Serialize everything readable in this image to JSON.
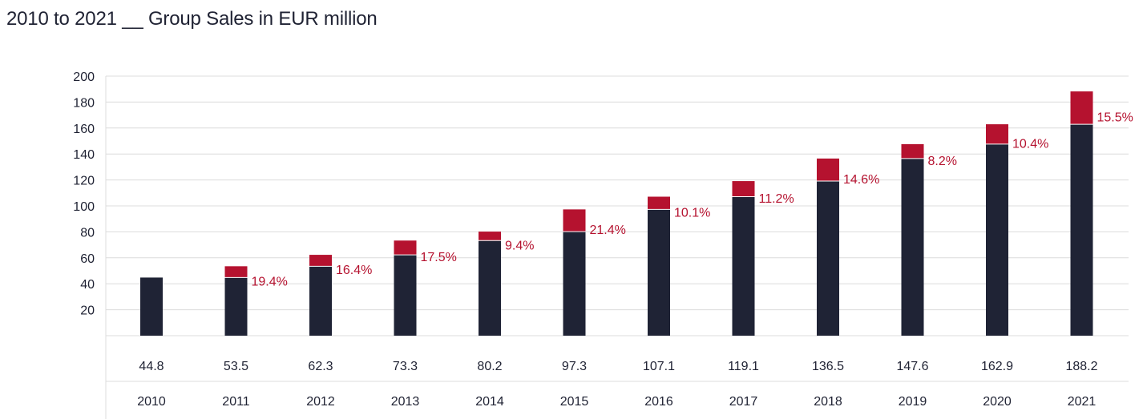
{
  "chart_data": {
    "type": "bar",
    "title": "2010 to 2021 __ Group Sales in EUR million",
    "categories": [
      "2010",
      "2011",
      "2012",
      "2013",
      "2014",
      "2015",
      "2016",
      "2017",
      "2018",
      "2019",
      "2020",
      "2021"
    ],
    "values": [
      44.8,
      53.5,
      62.3,
      73.3,
      80.2,
      97.3,
      107.1,
      119.1,
      136.5,
      147.6,
      162.9,
      188.2
    ],
    "value_labels": [
      "44.8",
      "53.5",
      "62.3",
      "73.3",
      "80.2",
      "97.3",
      "107.1",
      "119.1",
      "136.5",
      "147.6",
      "162.9",
      "188.2"
    ],
    "growth_labels": [
      "",
      "19.4%",
      "16.4%",
      "17.5%",
      "9.4%",
      "21.4%",
      "10.1%",
      "11.2%",
      "14.6%",
      "8.2%",
      "10.4%",
      "15.5%"
    ],
    "yticks": [
      20,
      40,
      60,
      80,
      100,
      120,
      140,
      160,
      180,
      200
    ],
    "ylim": [
      0,
      200
    ],
    "grid": true,
    "colors": {
      "base": "#1f2335",
      "increase": "#b5122f",
      "grid": "#dcdcdc",
      "text": "#1f2233",
      "growth_text": "#b5122f"
    }
  }
}
